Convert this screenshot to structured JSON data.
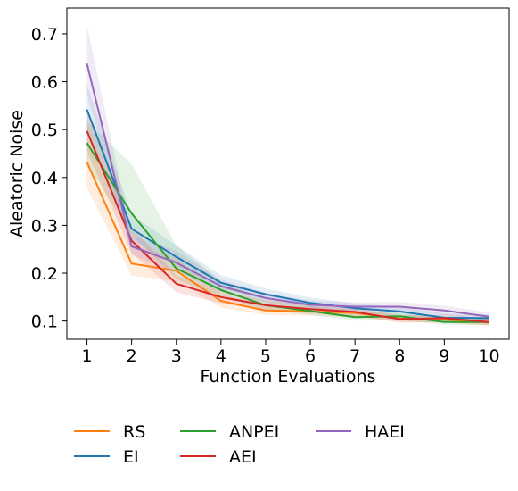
{
  "chart_data": {
    "type": "line",
    "title": "",
    "xlabel": "Function Evaluations",
    "ylabel": "Aleatoric Noise",
    "x": [
      1,
      2,
      3,
      4,
      5,
      6,
      7,
      8,
      9,
      10
    ],
    "xticks": [
      "1",
      "2",
      "3",
      "4",
      "5",
      "6",
      "7",
      "8",
      "9",
      "10"
    ],
    "yticks": [
      0.1,
      0.2,
      0.3,
      0.4,
      0.5,
      0.6,
      0.7
    ],
    "yticklabels": [
      "0.1",
      "0.2",
      "0.3",
      "0.4",
      "0.5",
      "0.6",
      "0.7"
    ],
    "xlim": [
      0.55,
      10.45
    ],
    "ylim": [
      0.062,
      0.754
    ],
    "grid": false,
    "legend_position": "bottom-left, below plot, 3 columns",
    "series": [
      {
        "name": "RS",
        "color": "#ff7f0e",
        "values": [
          0.432,
          0.22,
          0.205,
          0.142,
          0.122,
          0.12,
          0.117,
          0.105,
          0.103,
          0.097
        ],
        "lower": [
          0.378,
          0.195,
          0.183,
          0.128,
          0.113,
          0.111,
          0.109,
          0.098,
          0.096,
          0.09
        ],
        "upper": [
          0.486,
          0.262,
          0.232,
          0.156,
          0.131,
          0.129,
          0.125,
          0.112,
          0.11,
          0.104
        ]
      },
      {
        "name": "EI",
        "color": "#1f77b4",
        "values": [
          0.542,
          0.293,
          0.234,
          0.18,
          0.156,
          0.138,
          0.127,
          0.12,
          0.107,
          0.106
        ],
        "lower": [
          0.49,
          0.27,
          0.215,
          0.166,
          0.146,
          0.129,
          0.119,
          0.112,
          0.1,
          0.099
        ],
        "upper": [
          0.594,
          0.322,
          0.258,
          0.196,
          0.168,
          0.149,
          0.137,
          0.13,
          0.116,
          0.114
        ]
      },
      {
        "name": "ANPEI",
        "color": "#2ca02c",
        "values": [
          0.472,
          0.325,
          0.21,
          0.165,
          0.133,
          0.121,
          0.108,
          0.11,
          0.098,
          0.098
        ],
        "lower": [
          0.428,
          0.28,
          0.187,
          0.151,
          0.123,
          0.113,
          0.101,
          0.102,
          0.092,
          0.092
        ],
        "upper": [
          0.518,
          0.428,
          0.258,
          0.183,
          0.146,
          0.132,
          0.117,
          0.119,
          0.106,
          0.106
        ]
      },
      {
        "name": "AEI",
        "color": "#d62728",
        "values": [
          0.497,
          0.268,
          0.178,
          0.15,
          0.133,
          0.125,
          0.119,
          0.104,
          0.106,
          0.098
        ],
        "lower": [
          0.455,
          0.242,
          0.16,
          0.137,
          0.123,
          0.116,
          0.11,
          0.097,
          0.098,
          0.091
        ],
        "upper": [
          0.538,
          0.296,
          0.196,
          0.163,
          0.144,
          0.134,
          0.128,
          0.112,
          0.114,
          0.105
        ]
      },
      {
        "name": "HAEI",
        "color": "#9467bd",
        "values": [
          0.638,
          0.256,
          0.222,
          0.173,
          0.148,
          0.134,
          0.13,
          0.13,
          0.122,
          0.109
        ],
        "lower": [
          0.575,
          0.238,
          0.2,
          0.16,
          0.138,
          0.125,
          0.121,
          0.121,
          0.113,
          0.101
        ],
        "upper": [
          0.718,
          0.278,
          0.247,
          0.187,
          0.158,
          0.143,
          0.139,
          0.14,
          0.132,
          0.118
        ]
      }
    ],
    "legend_order": [
      "RS",
      "EI",
      "ANPEI",
      "AEI",
      "HAEI"
    ]
  }
}
